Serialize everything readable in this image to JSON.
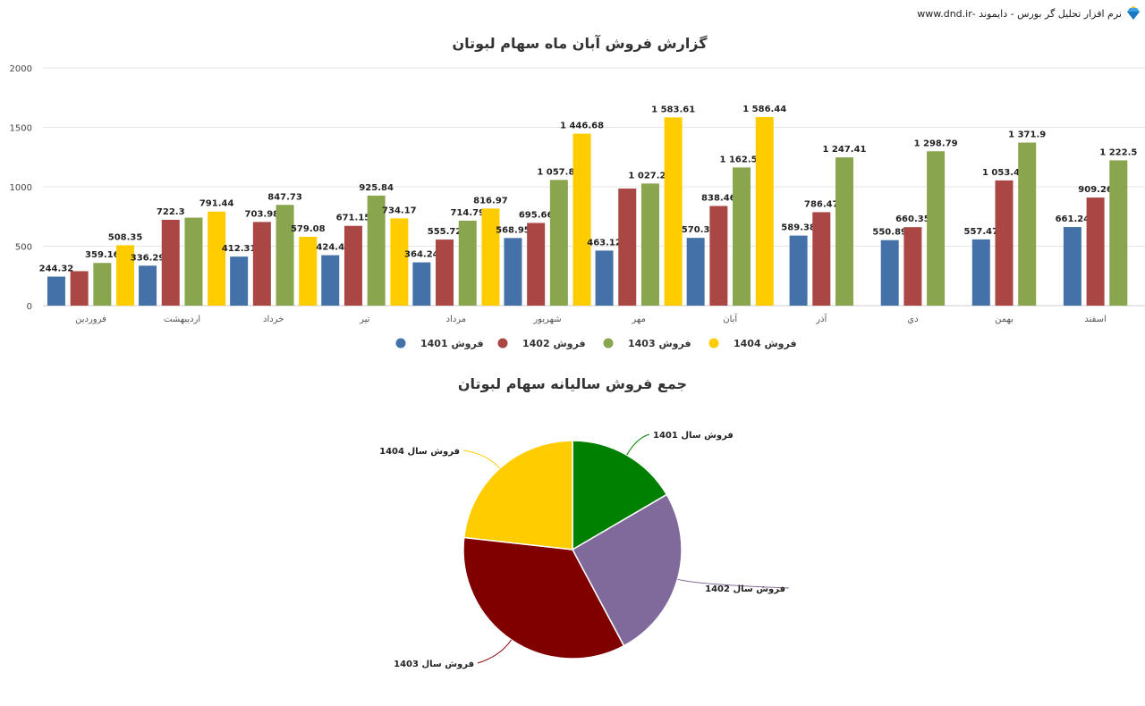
{
  "brand": {
    "text": "نرم افزار تحلیل گر بورس - دایموند -www.dnd.ir",
    "icon": "diamond-icon"
  },
  "chart_data": [
    {
      "type": "bar",
      "title": "گزارش فروش آبان ماه سهام لبوتان",
      "categories": [
        "فروردین",
        "اردیبهشت",
        "خرداد",
        "تیر",
        "مرداد",
        "شهریور",
        "مهر",
        "آبان",
        "آذر",
        "دي",
        "بهمن",
        "اسفند"
      ],
      "ylim": [
        0,
        2000
      ],
      "yticks": [
        "0",
        "500",
        "1000",
        "1500",
        "2000"
      ],
      "grid": true,
      "legend_position": "bottom",
      "series": [
        {
          "name": "فروش 1401",
          "color": "#4472a8",
          "values": [
            244.32,
            336.29,
            412.31,
            424.4,
            364.24,
            568.95,
            463.12,
            570.3,
            589.38,
            550.89,
            557.47,
            661.24
          ],
          "labels": [
            "244.32",
            "336.29",
            "412.31",
            "424.4",
            "364.24",
            "568.95",
            "463.12",
            "570.3",
            "589.38",
            "550.89",
            "557.47",
            "661.24"
          ]
        },
        {
          "name": "فروش 1402",
          "color": "#aa4643",
          "values": [
            290,
            722.3,
            703.98,
            671.15,
            555.72,
            695.66,
            985,
            838.46,
            786.47,
            660.35,
            1053.41,
            909.26
          ],
          "labels": [
            "",
            "722.3",
            "703.98",
            "671.15",
            "555.72",
            "695.66",
            "",
            "838.46",
            "786.47",
            "660.35",
            "1 053.41",
            "909.26"
          ]
        },
        {
          "name": "فروش 1403",
          "color": "#89a54e",
          "values": [
            359.16,
            740,
            847.73,
            925.84,
            714.79,
            1057.84,
            1027.25,
            1162.58,
            1247.41,
            1298.79,
            1371.9,
            1222.5
          ],
          "labels": [
            "359.16",
            "",
            "847.73",
            "925.84",
            "714.79",
            "1 057.84",
            "1 027.25",
            "1 162.58",
            "1 247.41",
            "1 298.79",
            "1 371.9",
            "1 222.5"
          ]
        },
        {
          "name": "فروش 1404",
          "color": "#ffcc00",
          "values": [
            508.35,
            791.44,
            579.08,
            734.17,
            816.97,
            1446.68,
            1583.61,
            1586.44,
            null,
            null,
            null,
            null
          ],
          "labels": [
            "508.35",
            "791.44",
            "579.08",
            "734.17",
            "816.97",
            "1 446.68",
            "1 583.61",
            "1 586.44",
            "",
            "",
            "",
            ""
          ]
        }
      ]
    },
    {
      "type": "pie",
      "title": "جمع فروش سالیانه سهام لبوتان",
      "slices": [
        {
          "label": "فروش سال 1401",
          "value": 5742.91,
          "color": "#008000"
        },
        {
          "label": "فروش سال 1402",
          "value": 8871.76,
          "color": "#806a9c"
        },
        {
          "label": "فروش سال 1403",
          "value": 11975.79,
          "color": "#800000"
        },
        {
          "label": "فروش سال 1404",
          "value": 8046.74,
          "color": "#ffcc00"
        }
      ]
    }
  ]
}
